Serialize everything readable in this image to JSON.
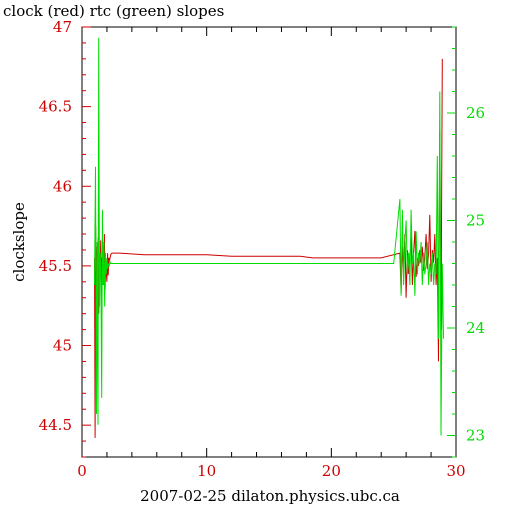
{
  "colors": {
    "background": "#ffffff",
    "frame": "#000000",
    "clock": "#cc0000",
    "rtc": "#00dd00"
  },
  "chart_data": {
    "type": "line",
    "title": "clock (red) rtc (green) slopes",
    "xlabel": "2007-02-25 dilaton.physics.ubc.ca",
    "ylabel": "clockslope",
    "ylabel_right": "",
    "xlim": [
      0,
      30
    ],
    "ylim": [
      44.3,
      47.0
    ],
    "ylim_right": [
      22.8,
      26.8
    ],
    "x_ticks": [
      "0",
      "10",
      "20",
      "30"
    ],
    "y_ticks": [
      "44.5",
      "45",
      "45.5",
      "46",
      "46.5",
      "47"
    ],
    "y_ticks_right": [
      "23",
      "24",
      "25",
      "26"
    ],
    "grid": false,
    "series": [
      {
        "name": "clock",
        "axis": "left",
        "x": [
          1.0,
          1.05,
          1.1,
          1.15,
          1.2,
          1.25,
          1.3,
          1.35,
          1.4,
          1.45,
          1.5,
          1.55,
          1.6,
          1.65,
          1.7,
          1.75,
          1.8,
          1.85,
          1.9,
          1.95,
          2.0,
          2.05,
          2.1,
          2.15,
          2.2,
          2.3,
          2.4,
          2.6,
          3.0,
          5.0,
          8.0,
          10.0,
          12.0,
          15.0,
          17.5,
          18.5,
          20.0,
          22.0,
          24.0,
          25.5,
          25.6,
          25.7,
          25.8,
          25.9,
          26.0,
          26.1,
          26.2,
          26.3,
          26.4,
          26.5,
          26.6,
          26.7,
          26.8,
          26.9,
          27.0,
          27.1,
          27.2,
          27.3,
          27.4,
          27.5,
          27.6,
          27.7,
          27.8,
          27.9,
          28.0,
          28.1,
          28.2,
          28.3,
          28.4,
          28.5,
          28.6,
          28.7,
          28.8,
          28.9
        ],
        "y": [
          45.55,
          44.42,
          45.75,
          45.28,
          45.62,
          45.35,
          45.68,
          45.2,
          45.58,
          45.42,
          45.66,
          45.3,
          45.55,
          45.48,
          45.62,
          45.38,
          45.7,
          45.35,
          45.52,
          45.46,
          45.4,
          45.58,
          45.44,
          45.55,
          45.53,
          45.57,
          45.58,
          45.58,
          45.58,
          45.57,
          45.57,
          45.57,
          45.56,
          45.56,
          45.56,
          45.55,
          45.55,
          45.55,
          45.55,
          45.58,
          45.33,
          45.62,
          45.48,
          45.7,
          45.3,
          45.6,
          45.45,
          45.55,
          45.68,
          45.38,
          45.58,
          45.72,
          45.43,
          45.55,
          45.5,
          45.6,
          45.52,
          45.62,
          45.47,
          45.55,
          45.7,
          45.48,
          45.58,
          45.82,
          45.4,
          45.6,
          45.52,
          45.7,
          45.38,
          45.55,
          44.9,
          46.35,
          45.1,
          46.8
        ]
      },
      {
        "name": "rtc",
        "axis": "right",
        "x": [
          1.0,
          1.08,
          1.16,
          1.22,
          1.28,
          1.34,
          1.4,
          1.46,
          1.52,
          1.58,
          1.64,
          1.7,
          1.76,
          1.82,
          1.88,
          1.94,
          2.0,
          2.06,
          2.12,
          2.18,
          2.24,
          2.3,
          2.4,
          2.6,
          3.0,
          5.0,
          10.0,
          15.0,
          20.0,
          25.0,
          25.5,
          25.6,
          25.7,
          25.8,
          25.9,
          26.0,
          26.1,
          26.2,
          26.3,
          26.4,
          26.5,
          26.6,
          26.7,
          26.8,
          26.9,
          27.0,
          27.1,
          27.2,
          27.3,
          27.4,
          27.5,
          27.6,
          27.7,
          27.8,
          27.9,
          28.0,
          28.1,
          28.2,
          28.3,
          28.4,
          28.5,
          28.6,
          28.7,
          28.8,
          28.9,
          29.0
        ],
        "y": [
          24.4,
          25.5,
          23.2,
          24.8,
          23.1,
          26.7,
          24.2,
          24.7,
          24.5,
          23.35,
          25.1,
          24.4,
          24.8,
          24.2,
          24.7,
          24.5,
          24.65,
          24.55,
          24.6,
          24.58,
          24.62,
          24.6,
          24.6,
          24.6,
          24.6,
          24.6,
          24.6,
          24.6,
          24.6,
          24.6,
          25.2,
          24.3,
          25.1,
          24.4,
          24.8,
          25.0,
          24.5,
          24.7,
          24.4,
          25.1,
          24.6,
          24.7,
          24.3,
          24.9,
          24.5,
          24.7,
          24.6,
          24.8,
          24.4,
          24.7,
          24.5,
          24.6,
          24.8,
          24.4,
          24.6,
          24.5,
          24.7,
          24.4,
          24.6,
          24.5,
          25.6,
          23.9,
          26.2,
          23.0,
          24.6,
          23.9
        ]
      }
    ]
  }
}
